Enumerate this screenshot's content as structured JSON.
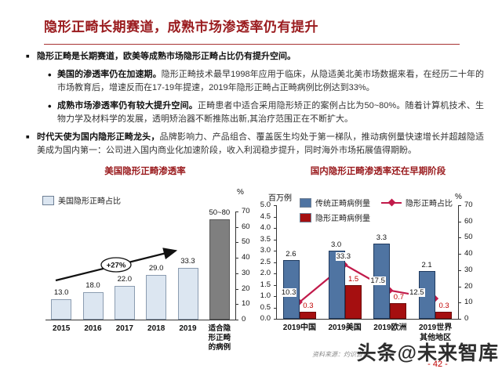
{
  "slide": {
    "title": "隐形正畸长期赛道，成熟市场渗透率仍有提升",
    "bullets": [
      {
        "bold": "隐形正畸是长期赛道，欧美等成熟市场隐形正畸占比仍有提升空间。",
        "text": ""
      },
      {
        "bold": "美国的渗透率仍在加速期。",
        "text": "隐形正畸技术最早1998年应用于临床，从隐适美北美市场数据来看，在经历二十年的市场教育后，增速反而在17-19年提速，2019年隐形正畸占正畸病例比例达到33%。"
      },
      {
        "bold": "成熟市场渗透率仍有较大提升空间。",
        "text": "正畸患者中适合采用隐形矫正的案例占比为50~80%。随着计算机技术、生物力学及材料学的发展，透明矫治器不断推陈出新,其治疗范围正在不断扩大。"
      },
      {
        "bold": "时代天使为国内隐形正畸龙头，",
        "text": "品牌影响力、产品组合、覆盖医生均处于第一梯队，推动病例量快速增长并超越隐适美成为国内第一：公司进入国内商业化加速阶段，收入利润稳步提升，同时海外市场拓展值得期盼。"
      }
    ],
    "footer": {
      "source": "资料来源：灼识咨询、",
      "watermark": "头条@未来智库",
      "page_number": "- 42 -"
    },
    "colors": {
      "title_red": "#9a1b1e",
      "page_red": "#c00000"
    }
  },
  "chart_data": [
    {
      "type": "bar",
      "title": "美国隐形正畸渗透率",
      "legend": [
        {
          "label": "美国隐形正畸占比",
          "color": "#dce6f1"
        }
      ],
      "ylabel": "%",
      "ylim": [
        0,
        70
      ],
      "yticks": [
        0,
        10,
        20,
        30,
        40,
        50,
        60,
        70
      ],
      "axis_side": "right",
      "grid": false,
      "categories": [
        "2015",
        "2016",
        "2017",
        "2018",
        "2019",
        "适合隐形正畸的病例"
      ],
      "categories_display": [
        [
          "2015"
        ],
        [
          "2016"
        ],
        [
          "2017"
        ],
        [
          "2018"
        ],
        [
          "2019"
        ],
        [
          "适合隐",
          "形正畸",
          "的病例"
        ]
      ],
      "values": [
        13.0,
        18.0,
        22.0,
        29.0,
        33.3,
        65
      ],
      "labels": [
        "13.0",
        "18.0",
        "22.0",
        "29.0",
        "33.3",
        "50~80"
      ],
      "bar_colors": [
        "#dce6f1",
        "#dce6f1",
        "#dce6f1",
        "#dce6f1",
        "#dce6f1",
        "#7f7f7f"
      ],
      "bar_borders": [
        "#8b9cb0",
        "#8b9cb0",
        "#8b9cb0",
        "#8b9cb0",
        "#8b9cb0",
        "#595959"
      ],
      "annotation": "+27%"
    },
    {
      "type": "bar+line",
      "title": "国内隐形正畸渗透率还在早期阶段",
      "categories": [
        "2019中国",
        "2019美国",
        "2019欧洲",
        "2019世界其他地区"
      ],
      "categories_display": [
        [
          "2019中国"
        ],
        [
          "2019美国"
        ],
        [
          "2019欧洲"
        ],
        [
          "2019世界",
          "其他地区"
        ]
      ],
      "left_axis": {
        "label": "百万例",
        "lim": [
          0,
          5
        ],
        "ticks": [
          "0.0",
          "0.5",
          "1.0",
          "1.5",
          "2.0",
          "2.5",
          "3.0",
          "3.5",
          "4.0",
          "4.5",
          "5.0"
        ]
      },
      "right_axis": {
        "label": "%",
        "lim": [
          0,
          70
        ],
        "ticks": [
          0,
          10,
          20,
          30,
          40,
          50,
          60,
          70
        ]
      },
      "grid": false,
      "legend_position": "top",
      "series": [
        {
          "name": "传统正畸病例量",
          "type": "bar",
          "axis": "left",
          "color": "#4f74a2",
          "border": "#1f3a5f",
          "values": [
            2.6,
            3.0,
            3.3,
            2.1
          ],
          "labels": [
            "2.6",
            "3.0",
            "3.3",
            "2.1"
          ]
        },
        {
          "name": "隐形正畸病例量",
          "type": "bar",
          "axis": "left",
          "color": "#a50f10",
          "border": "#6e0a0a",
          "values": [
            0.3,
            1.5,
            0.7,
            0.3
          ],
          "labels": [
            "0.3",
            "1.5",
            "0.7",
            "0.3"
          ]
        },
        {
          "name": "隐形正畸占比",
          "type": "line",
          "axis": "right",
          "color": "#c11a4a",
          "values": [
            10.3,
            33.3,
            17.5,
            12.5
          ],
          "labels": [
            "10.3",
            "33.3",
            "17.5",
            "12.5"
          ]
        }
      ]
    }
  ]
}
